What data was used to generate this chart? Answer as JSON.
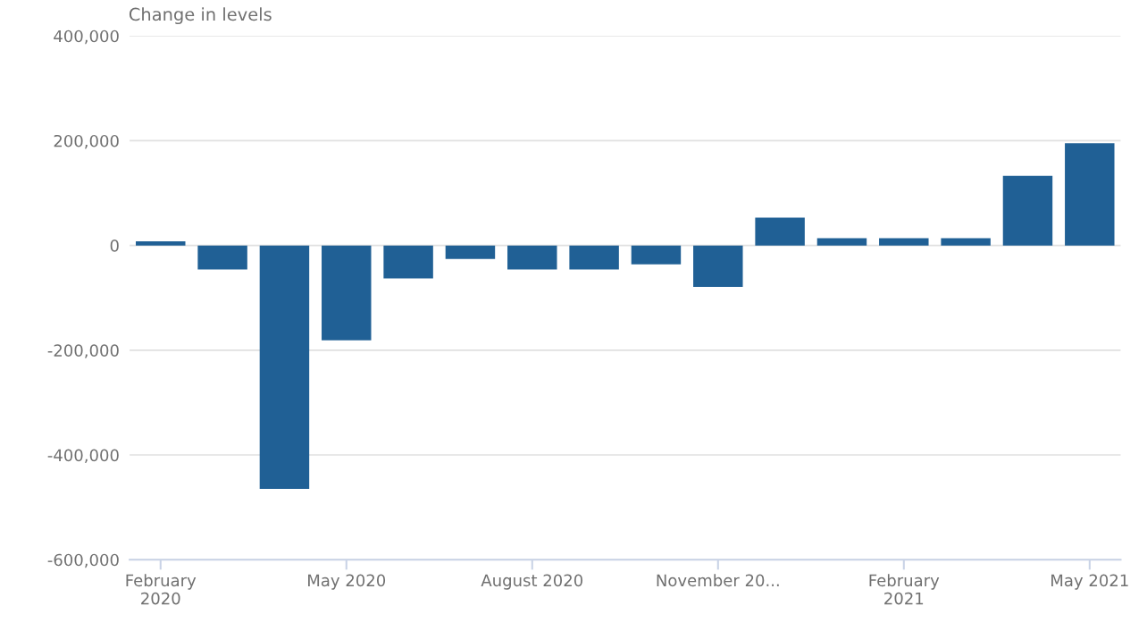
{
  "chart_data": {
    "type": "bar",
    "ylabel": "Change in levels",
    "categories": [
      "February\n2020",
      null,
      null,
      "May 2020",
      null,
      null,
      "August 2020",
      null,
      null,
      "November 20...",
      null,
      null,
      "February\n2021",
      null,
      null,
      "May 2021"
    ],
    "values": [
      8000,
      -46000,
      -465000,
      -181000,
      -63000,
      -26000,
      -46000,
      -46000,
      -36000,
      -79000,
      53000,
      14000,
      14000,
      14000,
      133000,
      195000
    ],
    "color": "#206095",
    "ylim": [
      -600000,
      400000
    ],
    "yticks": [
      {
        "value": -600000,
        "label": "-600,000"
      },
      {
        "value": -400000,
        "label": "-400,000"
      },
      {
        "value": -200000,
        "label": "-200,000"
      },
      {
        "value": 0,
        "label": "0"
      },
      {
        "value": 200000,
        "label": "200,000"
      },
      {
        "value": 400000,
        "label": "400,000"
      }
    ],
    "grid": "y"
  }
}
